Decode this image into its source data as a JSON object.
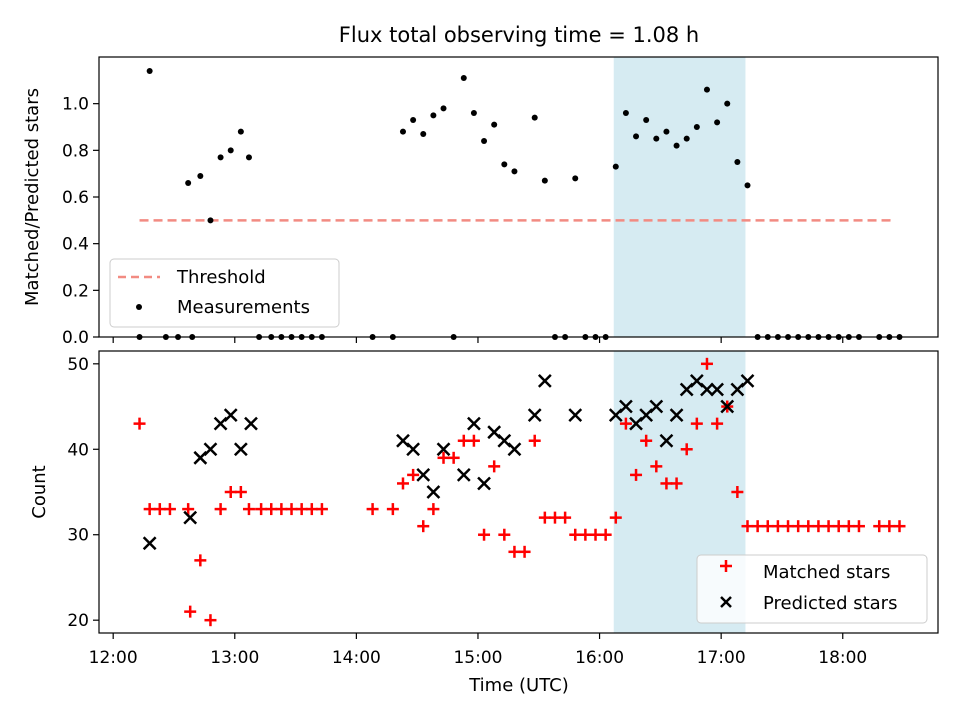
{
  "title": "Flux total observing time = 1.08 h",
  "colors": {
    "threshold": "#f28b82",
    "measurement": "#000000",
    "matched": "#ff0000",
    "predicted": "#000000",
    "highlight": "#add8e6"
  },
  "chart_data": [
    {
      "type": "scatter",
      "ylabel": "Matched/Predicted stars",
      "xlim": [
        "11:53",
        "18:47"
      ],
      "ylim": [
        0,
        1.2
      ],
      "yticks": [
        0.0,
        0.2,
        0.4,
        0.6,
        0.8,
        1.0
      ],
      "ytick_labels": [
        "0.0",
        "0.2",
        "0.4",
        "0.6",
        "0.8",
        "1.0"
      ],
      "highlight_span": [
        "16:07",
        "17:12"
      ],
      "legend": {
        "position": "lower-left",
        "entries": [
          {
            "label": "Threshold",
            "marker": "dashed-line"
          },
          {
            "label": "Measurements",
            "marker": "dot"
          }
        ]
      },
      "series": [
        {
          "name": "Threshold",
          "type": "line",
          "points": [
            [
              "12:13",
              0.5
            ],
            [
              "18:25",
              0.5
            ]
          ]
        },
        {
          "name": "Measurements",
          "type": "scatter",
          "points": [
            [
              "12:13",
              0
            ],
            [
              "12:18",
              1.14
            ],
            [
              "12:26",
              0
            ],
            [
              "12:32",
              0
            ],
            [
              "12:39",
              0
            ],
            [
              "12:37",
              0.66
            ],
            [
              "12:43",
              0.69
            ],
            [
              "12:48",
              0.5
            ],
            [
              "12:53",
              0.77
            ],
            [
              "12:58",
              0.8
            ],
            [
              "13:03",
              0.88
            ],
            [
              "13:07",
              0.77
            ],
            [
              "13:12",
              0
            ],
            [
              "13:18",
              0
            ],
            [
              "13:23",
              0
            ],
            [
              "13:28",
              0
            ],
            [
              "13:33",
              0
            ],
            [
              "13:38",
              0
            ],
            [
              "13:43",
              0
            ],
            [
              "14:08",
              0
            ],
            [
              "14:18",
              0
            ],
            [
              "14:23",
              0.88
            ],
            [
              "14:28",
              0.93
            ],
            [
              "14:33",
              0.87
            ],
            [
              "14:38",
              0.95
            ],
            [
              "14:43",
              0.98
            ],
            [
              "14:48",
              0
            ],
            [
              "14:53",
              1.11
            ],
            [
              "14:58",
              0.96
            ],
            [
              "15:03",
              0.84
            ],
            [
              "15:08",
              0.91
            ],
            [
              "15:13",
              0.74
            ],
            [
              "15:18",
              0.71
            ],
            [
              "15:28",
              0.94
            ],
            [
              "15:33",
              0.67
            ],
            [
              "15:38",
              0
            ],
            [
              "15:43",
              0
            ],
            [
              "15:48",
              0.68
            ],
            [
              "15:53",
              0
            ],
            [
              "15:58",
              0
            ],
            [
              "16:03",
              0
            ],
            [
              "16:08",
              0.73
            ],
            [
              "16:13",
              0.96
            ],
            [
              "16:18",
              0.86
            ],
            [
              "16:23",
              0.93
            ],
            [
              "16:28",
              0.85
            ],
            [
              "16:33",
              0.88
            ],
            [
              "16:38",
              0.82
            ],
            [
              "16:43",
              0.85
            ],
            [
              "16:48",
              0.9
            ],
            [
              "16:53",
              1.06
            ],
            [
              "16:58",
              0.92
            ],
            [
              "17:03",
              1.0
            ],
            [
              "17:08",
              0.75
            ],
            [
              "17:13",
              0.65
            ],
            [
              "17:18",
              0
            ],
            [
              "17:23",
              0
            ],
            [
              "17:28",
              0
            ],
            [
              "17:33",
              0
            ],
            [
              "17:38",
              0
            ],
            [
              "17:43",
              0
            ],
            [
              "17:48",
              0
            ],
            [
              "17:53",
              0
            ],
            [
              "17:58",
              0
            ],
            [
              "18:03",
              0
            ],
            [
              "18:08",
              0
            ],
            [
              "18:18",
              0
            ],
            [
              "18:23",
              0
            ],
            [
              "18:28",
              0
            ]
          ]
        }
      ]
    },
    {
      "type": "scatter",
      "xlabel": "Time (UTC)",
      "ylabel": "Count",
      "xlim": [
        "11:53",
        "18:47"
      ],
      "ylim": [
        18.5,
        51.5
      ],
      "xticks": [
        "12:00",
        "13:00",
        "14:00",
        "15:00",
        "16:00",
        "17:00",
        "18:00"
      ],
      "yticks": [
        20,
        30,
        40,
        50
      ],
      "ytick_labels": [
        "20",
        "30",
        "40",
        "50"
      ],
      "highlight_span": [
        "16:07",
        "17:12"
      ],
      "legend": {
        "position": "lower-right",
        "entries": [
          {
            "label": "Matched stars",
            "marker": "plus"
          },
          {
            "label": "Predicted stars",
            "marker": "x"
          }
        ]
      },
      "series": [
        {
          "name": "Matched stars",
          "marker": "plus",
          "points": [
            [
              "12:13",
              43
            ],
            [
              "12:18",
              33
            ],
            [
              "12:23",
              33
            ],
            [
              "12:28",
              33
            ],
            [
              "12:37",
              33
            ],
            [
              "12:38",
              21
            ],
            [
              "12:43",
              27
            ],
            [
              "12:48",
              20
            ],
            [
              "12:53",
              33
            ],
            [
              "12:58",
              35
            ],
            [
              "13:03",
              35
            ],
            [
              "13:07",
              33
            ],
            [
              "13:13",
              33
            ],
            [
              "13:18",
              33
            ],
            [
              "13:23",
              33
            ],
            [
              "13:28",
              33
            ],
            [
              "13:33",
              33
            ],
            [
              "13:38",
              33
            ],
            [
              "13:43",
              33
            ],
            [
              "14:08",
              33
            ],
            [
              "14:18",
              33
            ],
            [
              "14:23",
              36
            ],
            [
              "14:28",
              37
            ],
            [
              "14:33",
              31
            ],
            [
              "14:38",
              33
            ],
            [
              "14:43",
              39
            ],
            [
              "14:48",
              39
            ],
            [
              "14:53",
              41
            ],
            [
              "14:58",
              41
            ],
            [
              "15:03",
              30
            ],
            [
              "15:08",
              38
            ],
            [
              "15:13",
              30
            ],
            [
              "15:18",
              28
            ],
            [
              "15:23",
              28
            ],
            [
              "15:28",
              41
            ],
            [
              "15:33",
              32
            ],
            [
              "15:38",
              32
            ],
            [
              "15:43",
              32
            ],
            [
              "15:48",
              30
            ],
            [
              "15:53",
              30
            ],
            [
              "15:58",
              30
            ],
            [
              "16:03",
              30
            ],
            [
              "16:08",
              32
            ],
            [
              "16:13",
              43
            ],
            [
              "16:18",
              37
            ],
            [
              "16:23",
              41
            ],
            [
              "16:28",
              38
            ],
            [
              "16:33",
              36
            ],
            [
              "16:38",
              36
            ],
            [
              "16:43",
              40
            ],
            [
              "16:48",
              43
            ],
            [
              "16:53",
              50
            ],
            [
              "16:58",
              43
            ],
            [
              "17:03",
              45
            ],
            [
              "17:08",
              35
            ],
            [
              "17:13",
              31
            ],
            [
              "17:18",
              31
            ],
            [
              "17:23",
              31
            ],
            [
              "17:28",
              31
            ],
            [
              "17:33",
              31
            ],
            [
              "17:38",
              31
            ],
            [
              "17:43",
              31
            ],
            [
              "17:48",
              31
            ],
            [
              "17:53",
              31
            ],
            [
              "17:58",
              31
            ],
            [
              "18:03",
              31
            ],
            [
              "18:08",
              31
            ],
            [
              "18:18",
              31
            ],
            [
              "18:23",
              31
            ],
            [
              "18:28",
              31
            ]
          ]
        },
        {
          "name": "Predicted stars",
          "marker": "x",
          "points": [
            [
              "12:18",
              29
            ],
            [
              "12:38",
              32
            ],
            [
              "12:43",
              39
            ],
            [
              "12:48",
              40
            ],
            [
              "12:53",
              43
            ],
            [
              "12:58",
              44
            ],
            [
              "13:03",
              40
            ],
            [
              "13:08",
              43
            ],
            [
              "14:23",
              41
            ],
            [
              "14:28",
              40
            ],
            [
              "14:33",
              37
            ],
            [
              "14:38",
              35
            ],
            [
              "14:43",
              40
            ],
            [
              "14:53",
              37
            ],
            [
              "14:58",
              43
            ],
            [
              "15:03",
              36
            ],
            [
              "15:08",
              42
            ],
            [
              "15:13",
              41
            ],
            [
              "15:18",
              40
            ],
            [
              "15:28",
              44
            ],
            [
              "15:33",
              48
            ],
            [
              "15:48",
              44
            ],
            [
              "16:08",
              44
            ],
            [
              "16:13",
              45
            ],
            [
              "16:18",
              43
            ],
            [
              "16:23",
              44
            ],
            [
              "16:28",
              45
            ],
            [
              "16:33",
              41
            ],
            [
              "16:38",
              44
            ],
            [
              "16:43",
              47
            ],
            [
              "16:48",
              48
            ],
            [
              "16:53",
              47
            ],
            [
              "16:58",
              47
            ],
            [
              "17:03",
              45
            ],
            [
              "17:08",
              47
            ],
            [
              "17:13",
              48
            ]
          ]
        }
      ]
    }
  ]
}
